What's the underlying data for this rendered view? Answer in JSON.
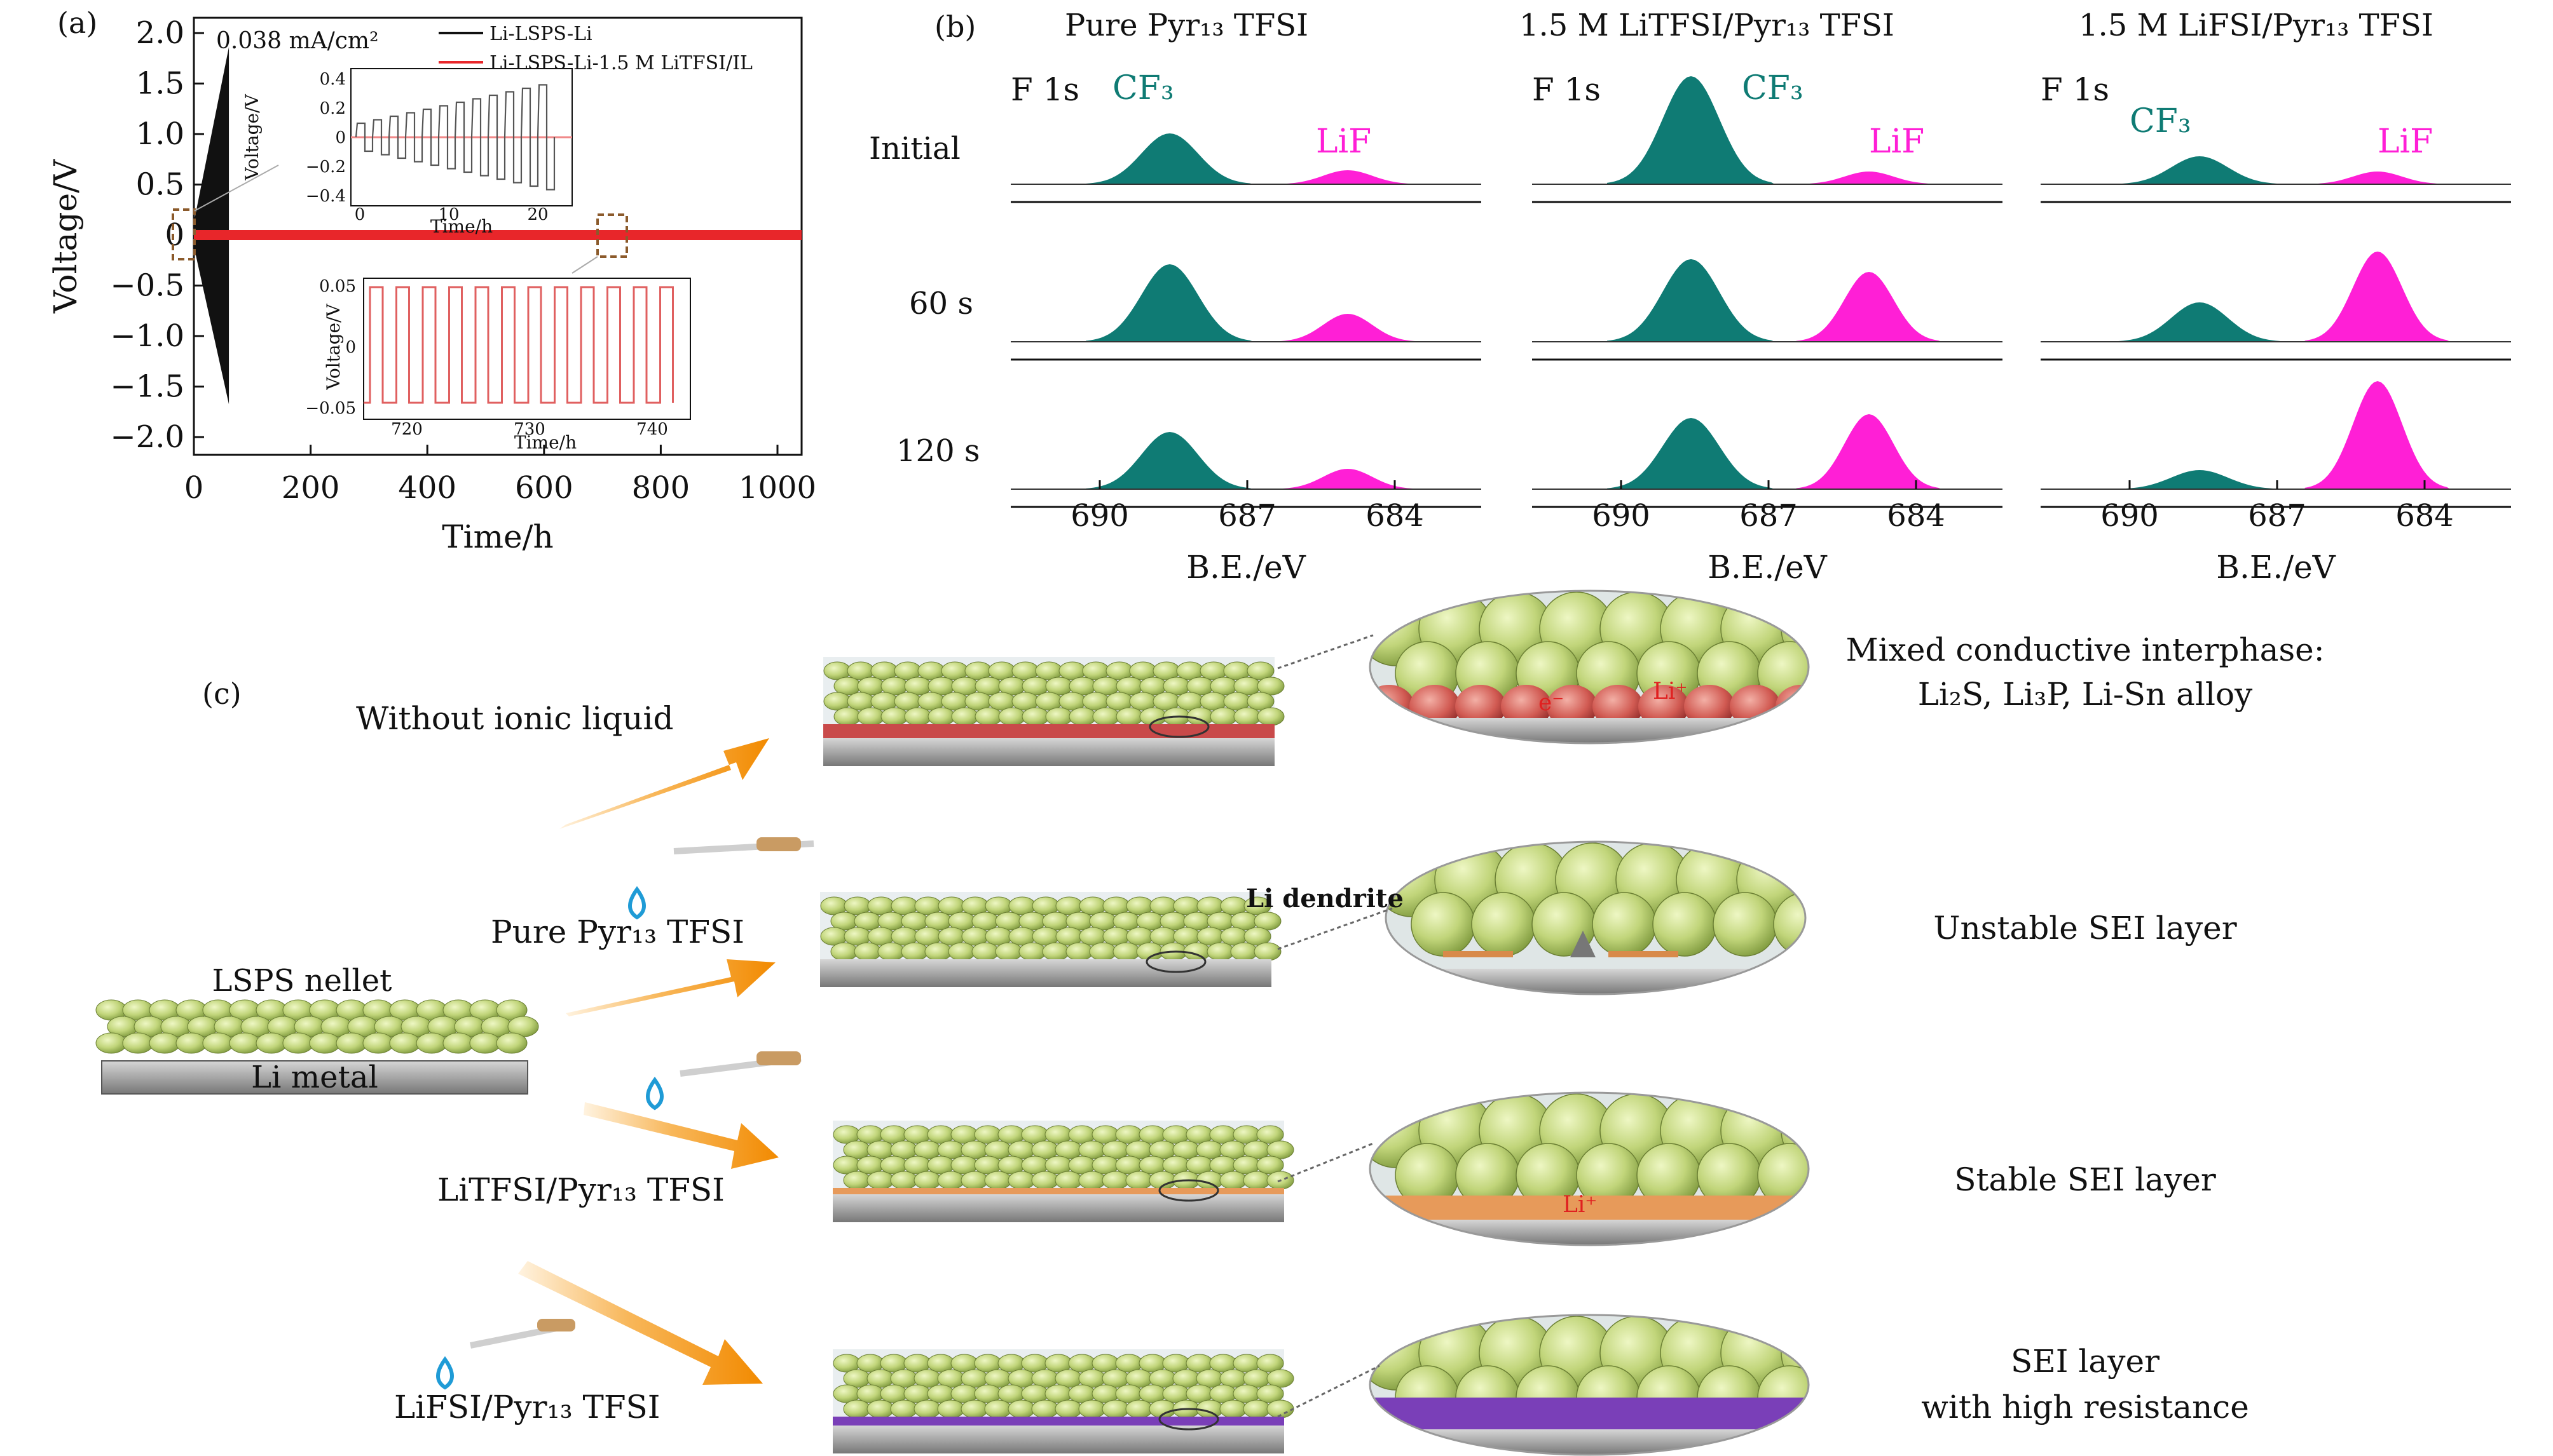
{
  "panel_a": {
    "label": "(a)",
    "current_density": "0.038 mA/cm²",
    "legend": [
      "Li-LSPS-Li",
      "Li-LSPS-Li-1.5 M LiTFSI/IL"
    ],
    "xlabel": "Time/h",
    "ylabel": "Voltage/V",
    "xticks": [
      "0",
      "200",
      "400",
      "600",
      "800",
      "1000"
    ],
    "yticks": [
      "2.0",
      "1.5",
      "1.0",
      "0.5",
      "0",
      "−0.5",
      "−1.0",
      "−1.5",
      "−2.0"
    ],
    "inset1": {
      "ylabel": "Voltage/V",
      "xlabel": "Time/h",
      "yticks": [
        "0.4",
        "0.2",
        "0",
        "−0.2",
        "−0.4"
      ],
      "xticks": [
        "0",
        "10",
        "20"
      ]
    },
    "inset2": {
      "ylabel": "Voltage/V",
      "xlabel": "Time/h",
      "yticks": [
        "0.05",
        "0",
        "−0.05"
      ],
      "xticks": [
        "720",
        "730",
        "740"
      ]
    },
    "colors": {
      "black_series": "#111111",
      "red_series": "#e8262a",
      "zoom_box": "#8b5a2b"
    }
  },
  "panel_b": {
    "label": "(b)",
    "columns": [
      "Pure Pyr₁₃ TFSI",
      "1.5 M LiTFSI/Pyr₁₃ TFSI",
      "1.5 M LiFSI/Pyr₁₃ TFSI"
    ],
    "rows": [
      "Initial",
      "60 s",
      "120 s"
    ],
    "region": "F 1s",
    "peak_cf3": "CF₃",
    "peak_lif": "LiF",
    "xlabel": "B.E./eV",
    "xticks": [
      "690",
      "687",
      "684"
    ],
    "colors": {
      "cf3": "#0f7b74",
      "lif": "#ff1fd6"
    }
  },
  "panel_c": {
    "label": "(c)",
    "start_top": "LSPS nellet",
    "start_bottom": "Li metal",
    "conditions": [
      "Without ionic liquid",
      "Pure Pyr₁₃ TFSI",
      "LiTFSI/Pyr₁₃ TFSI",
      "LiFSI/Pyr₁₃ TFSI"
    ],
    "outcomes": [
      [
        "Mixed conductive interphase:",
        "Li₂S, Li₃P, Li-Sn alloy"
      ],
      [
        "Unstable SEI layer"
      ],
      [
        "Stable SEI layer"
      ],
      [
        "SEI layer",
        "with high resistance"
      ]
    ],
    "zoom_labels": {
      "dendrite": "Li dendrite",
      "electron": "e⁻",
      "lithium_ion": "Li⁺"
    },
    "colors": {
      "pellet": "#c5d97a",
      "li_metal": "#9a9a9a",
      "mixed": "#c94a4a",
      "stable": "#e79a5a",
      "resistive": "#7a3fb8",
      "arrow": "#f59a1e",
      "drop": "#1f9bd6"
    }
  }
}
